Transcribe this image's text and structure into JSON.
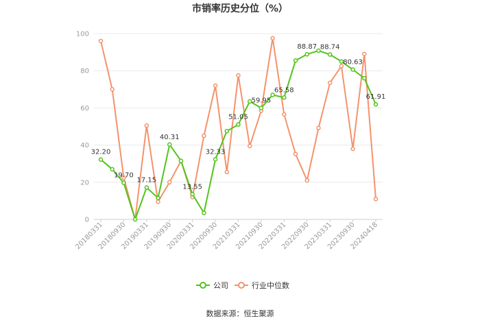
{
  "chart_data": {
    "type": "line",
    "title": "市销率历史分位（%）",
    "source": "数据来源：恒生聚源",
    "ylim": [
      0,
      100
    ],
    "yticks": [
      0,
      20,
      40,
      60,
      80,
      100
    ],
    "x": [
      "20180331",
      "20180630",
      "20180930",
      "20181231",
      "20190331",
      "20190630",
      "20190930",
      "20191231",
      "20200331",
      "20200630",
      "20200930",
      "20201231",
      "20210331",
      "20210630",
      "20210930",
      "20211231",
      "20220331",
      "20220630",
      "20220930",
      "20221231",
      "20230331",
      "20230630",
      "20230930",
      "20231231",
      "20240418"
    ],
    "xtick_labels": [
      "20180331",
      "20180930",
      "20190331",
      "20190930",
      "20200331",
      "20200930",
      "20210331",
      "20210930",
      "20220331",
      "20220930",
      "20230331",
      "20230930",
      "20240418"
    ],
    "grid": true,
    "legend_position": "bottom",
    "series": [
      {
        "name": "公司",
        "color": "#52c41a",
        "values": [
          32.2,
          27,
          19.7,
          0,
          17.15,
          11.5,
          40.31,
          31.5,
          13.55,
          3.5,
          32.33,
          47.5,
          51.05,
          63.5,
          59.95,
          67,
          65.58,
          85.5,
          88.87,
          90.8,
          88.74,
          85,
          80.63,
          76,
          61.91
        ],
        "labels": {
          "0": "32.20",
          "2": "19.70",
          "4": "17.15",
          "6": "40.31",
          "8": "13.55",
          "10": "32.33",
          "12": "51.05",
          "14": "59.95",
          "16": "65.58",
          "18": "88.87",
          "20": "88.74",
          "22": "80.63",
          "24": "61.91"
        }
      },
      {
        "name": "行业中位数",
        "color": "#f4926b",
        "values": [
          96,
          70,
          22.5,
          0,
          50.5,
          9.5,
          20,
          31.5,
          12,
          45,
          72,
          25.5,
          77.5,
          39.5,
          58.5,
          97.5,
          56.5,
          35.2,
          21,
          49.2,
          73.5,
          82.5,
          38,
          89,
          11
        ]
      }
    ]
  }
}
